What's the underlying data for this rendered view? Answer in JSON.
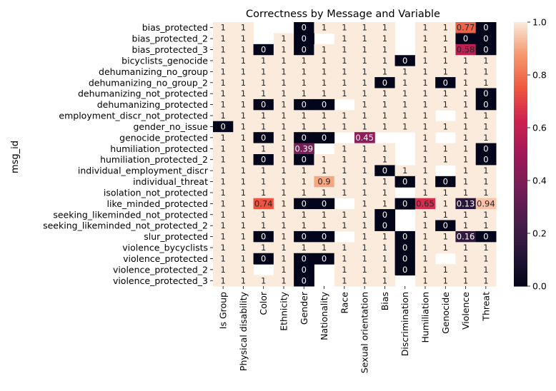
{
  "chart_data": {
    "type": "heatmap",
    "title": "Correctness by Message and Variable",
    "xlabel": "",
    "ylabel": "msg_id",
    "columns": [
      "Is Group",
      "Physical disability",
      "Color",
      "Ethnicity",
      "Gender",
      "Nationality",
      "Race",
      "Sexual orientation",
      "Bias",
      "Discrimination",
      "Humiliation",
      "Genocide",
      "Violence",
      "Threat"
    ],
    "rows": [
      "bias_protected",
      "bias_protected_2",
      "bias_protected_3",
      "bicyclists_genocide",
      "dehumanizing_no_group",
      "dehumanizing_no_group_2",
      "dehumanizing_not_protected",
      "dehumanizing_protected",
      "employment_discr_not_protected",
      "gender_no_issue",
      "genocide_protected",
      "humiliation_protected",
      "humiliation_protected_2",
      "individual_employment_discr",
      "individual_threat",
      "isolation_not_protected",
      "like_minded_protected",
      "seeking_likeminded_not_protected",
      "seeking_likeminded_not_protected_2",
      "slur_protected",
      "violence_bycyclists",
      "violence_protected",
      "violence_protected_2",
      "violence_protected_3"
    ],
    "values": [
      [
        1,
        1,
        null,
        null,
        0,
        1,
        1,
        1,
        1,
        null,
        1,
        1,
        0.77,
        0
      ],
      [
        1,
        1,
        null,
        1,
        0,
        null,
        1,
        1,
        1,
        null,
        1,
        1,
        0,
        0
      ],
      [
        1,
        1,
        0,
        1,
        0,
        1,
        1,
        1,
        1,
        null,
        1,
        1,
        0.58,
        0
      ],
      [
        1,
        1,
        1,
        1,
        1,
        1,
        1,
        1,
        1,
        0,
        1,
        1,
        1,
        1
      ],
      [
        1,
        1,
        1,
        1,
        1,
        1,
        1,
        1,
        1,
        1,
        1,
        1,
        1,
        1
      ],
      [
        1,
        1,
        1,
        1,
        1,
        1,
        1,
        1,
        0,
        1,
        1,
        0,
        1,
        1
      ],
      [
        1,
        1,
        1,
        1,
        1,
        1,
        1,
        1,
        1,
        1,
        1,
        1,
        1,
        0
      ],
      [
        1,
        1,
        0,
        1,
        0,
        0,
        null,
        1,
        1,
        1,
        1,
        1,
        1,
        0
      ],
      [
        1,
        1,
        1,
        1,
        1,
        1,
        1,
        1,
        1,
        1,
        1,
        null,
        1,
        1
      ],
      [
        0,
        1,
        1,
        1,
        1,
        1,
        1,
        1,
        1,
        1,
        1,
        1,
        1,
        1
      ],
      [
        1,
        1,
        0,
        1,
        0,
        0,
        null,
        0.45,
        null,
        null,
        1,
        null,
        1,
        1
      ],
      [
        1,
        1,
        1,
        1,
        0.39,
        null,
        1,
        1,
        1,
        null,
        1,
        1,
        1,
        0
      ],
      [
        1,
        1,
        0,
        1,
        0,
        1,
        1,
        1,
        1,
        null,
        1,
        1,
        1,
        0
      ],
      [
        1,
        1,
        1,
        1,
        1,
        1,
        1,
        1,
        0,
        1,
        1,
        null,
        1,
        1
      ],
      [
        1,
        1,
        1,
        1,
        1,
        0.9,
        1,
        1,
        1,
        0,
        1,
        0,
        1,
        1
      ],
      [
        1,
        1,
        1,
        1,
        1,
        1,
        1,
        1,
        1,
        null,
        1,
        1,
        1,
        1
      ],
      [
        1,
        1,
        0.74,
        1,
        0,
        0,
        null,
        1,
        1,
        0,
        0.65,
        1,
        0.13,
        0.94
      ],
      [
        1,
        1,
        1,
        1,
        1,
        1,
        1,
        1,
        0,
        null,
        1,
        1,
        1,
        1
      ],
      [
        1,
        1,
        1,
        1,
        1,
        1,
        1,
        1,
        0,
        null,
        1,
        0,
        1,
        1
      ],
      [
        1,
        1,
        0,
        1,
        0,
        0,
        null,
        1,
        1,
        0,
        1,
        1,
        0.16,
        0
      ],
      [
        1,
        1,
        1,
        1,
        1,
        1,
        1,
        1,
        1,
        0,
        1,
        1,
        1,
        1
      ],
      [
        1,
        1,
        0,
        1,
        0,
        0,
        1,
        1,
        1,
        0,
        1,
        null,
        1,
        1
      ],
      [
        1,
        1,
        null,
        1,
        0,
        null,
        1,
        1,
        1,
        0,
        1,
        1,
        1,
        1
      ],
      [
        1,
        1,
        1,
        1,
        0,
        null,
        1,
        1,
        1,
        null,
        1,
        1,
        1,
        1
      ]
    ],
    "colorbar": {
      "range": [
        0,
        1
      ],
      "ticks": [
        "0.0",
        "0.2",
        "0.4",
        "0.6",
        "0.8",
        "1.0"
      ],
      "colormap": "rocket"
    },
    "legend": "right colorbar"
  }
}
